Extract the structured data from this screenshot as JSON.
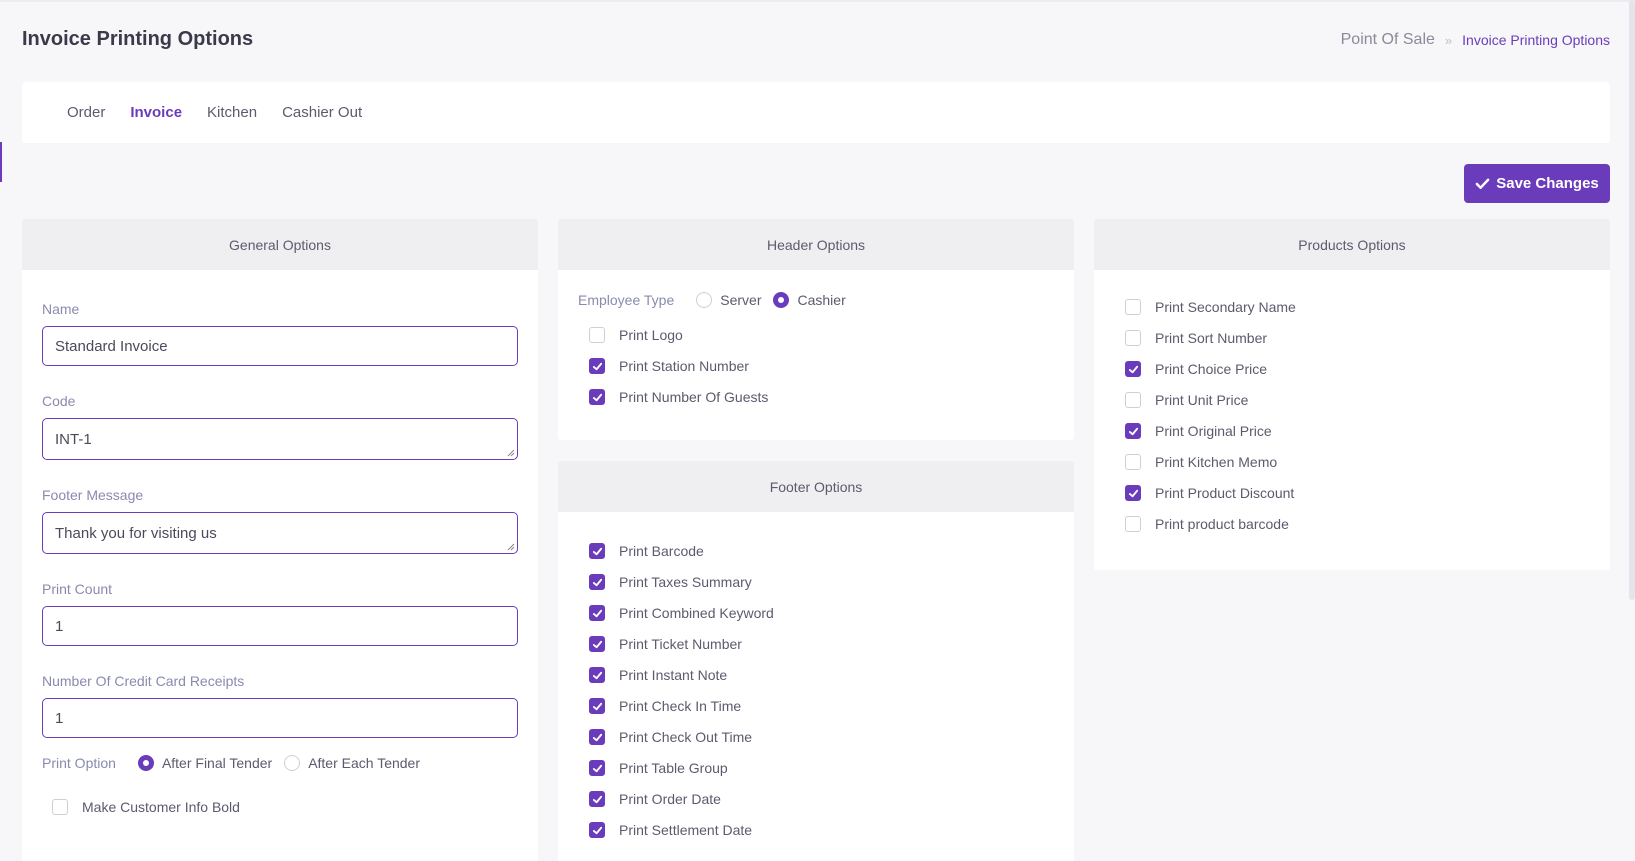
{
  "page": {
    "title": "Invoice Printing Options"
  },
  "breadcrumb": {
    "root": "Point Of Sale",
    "separator": "»",
    "current": "Invoice Printing Options"
  },
  "tabs": [
    {
      "label": "Order",
      "active": false
    },
    {
      "label": "Invoice",
      "active": true
    },
    {
      "label": "Kitchen",
      "active": false
    },
    {
      "label": "Cashier Out",
      "active": false
    }
  ],
  "save_button": {
    "label": "Save Changes",
    "icon": "check-icon"
  },
  "colors": {
    "accent": "#6a3cbc",
    "panel_header": "#efeff1",
    "label": "#8a8ab0"
  },
  "general": {
    "title": "General Options",
    "name": {
      "label": "Name",
      "value": "Standard Invoice"
    },
    "code": {
      "label": "Code",
      "value": "INT-1"
    },
    "footer_message": {
      "label": "Footer Message",
      "value": "Thank you for visiting us"
    },
    "print_count": {
      "label": "Print Count",
      "value": "1"
    },
    "credit_receipts": {
      "label": "Number Of Credit Card Receipts",
      "value": "1"
    },
    "print_option": {
      "label": "Print Option",
      "options": [
        {
          "label": "After Final Tender",
          "selected": true
        },
        {
          "label": "After Each Tender",
          "selected": false
        }
      ]
    },
    "bold_customer": {
      "label": "Make Customer Info Bold",
      "checked": false
    }
  },
  "header": {
    "title": "Header Options",
    "employee_type": {
      "label": "Employee Type",
      "options": [
        {
          "label": "Server",
          "selected": false
        },
        {
          "label": "Cashier",
          "selected": true
        }
      ]
    },
    "items": [
      {
        "label": "Print Logo",
        "checked": false
      },
      {
        "label": "Print Station Number",
        "checked": true
      },
      {
        "label": "Print Number Of Guests",
        "checked": true
      }
    ]
  },
  "footer": {
    "title": "Footer Options",
    "items": [
      {
        "label": "Print Barcode",
        "checked": true
      },
      {
        "label": "Print Taxes Summary",
        "checked": true
      },
      {
        "label": "Print Combined Keyword",
        "checked": true
      },
      {
        "label": "Print Ticket Number",
        "checked": true
      },
      {
        "label": "Print Instant Note",
        "checked": true
      },
      {
        "label": "Print Check In Time",
        "checked": true
      },
      {
        "label": "Print Check Out Time",
        "checked": true
      },
      {
        "label": "Print Table Group",
        "checked": true
      },
      {
        "label": "Print Order Date",
        "checked": true
      },
      {
        "label": "Print Settlement Date",
        "checked": true
      }
    ]
  },
  "products": {
    "title": "Products Options",
    "items": [
      {
        "label": "Print Secondary Name",
        "checked": false
      },
      {
        "label": "Print Sort Number",
        "checked": false
      },
      {
        "label": "Print Choice Price",
        "checked": true
      },
      {
        "label": "Print Unit Price",
        "checked": false
      },
      {
        "label": "Print Original Price",
        "checked": true
      },
      {
        "label": "Print Kitchen Memo",
        "checked": false
      },
      {
        "label": "Print Product Discount",
        "checked": true
      },
      {
        "label": "Print product barcode",
        "checked": false
      }
    ]
  }
}
